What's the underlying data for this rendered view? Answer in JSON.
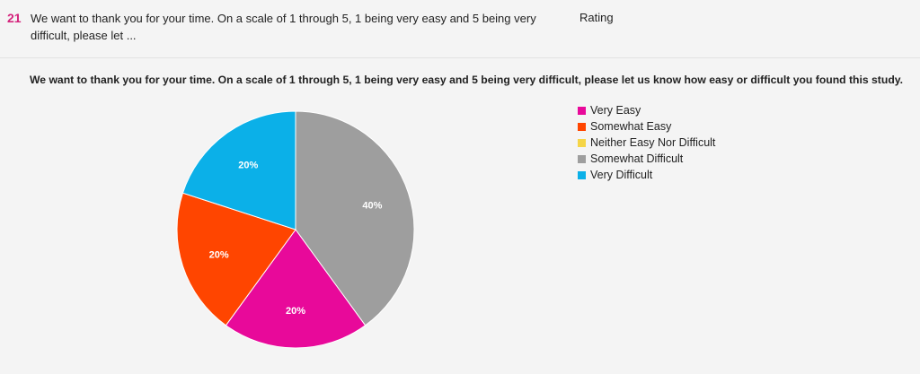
{
  "question": {
    "number": "21",
    "text": "We want to thank you for your time. On a scale of 1 through 5, 1 being very easy and 5 being very difficult, please let ...",
    "type": "Rating"
  },
  "chart_data": {
    "type": "pie",
    "title": "We want to thank you for your time. On a scale of 1 through 5, 1 being very easy and 5 being very difficult, please let us know how easy or difficult you found this study.",
    "categories": [
      "Very Easy",
      "Somewhat Easy",
      "Neither Easy Nor Difficult",
      "Somewhat Difficult",
      "Very Difficult"
    ],
    "values": [
      20,
      20,
      0,
      40,
      20
    ],
    "labels": [
      "20%",
      "20%",
      "",
      "40%",
      "20%"
    ],
    "colors": [
      "#e8099a",
      "#ff4500",
      "#f5d547",
      "#9e9e9e",
      "#0bb0e8"
    ],
    "legend": "right"
  }
}
